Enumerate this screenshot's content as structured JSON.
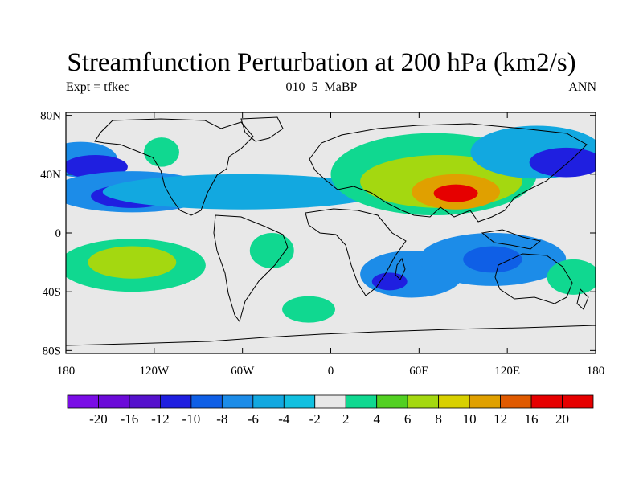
{
  "title": "Streamfunction Perturbation at 200 hPa (km2/s)",
  "left_string": "Expt = tfkec",
  "center_string": "010_5_MaBP",
  "right_string": "ANN",
  "axes": {
    "lat_labels": [
      "80N",
      "40N",
      "0",
      "40S",
      "80S"
    ],
    "lat_values": [
      80,
      40,
      0,
      -40,
      -80
    ],
    "lon_labels": [
      "180",
      "120W",
      "60W",
      "0",
      "60E",
      "120E",
      "180"
    ],
    "lon_values": [
      -180,
      -120,
      -60,
      0,
      60,
      120,
      180
    ]
  },
  "colorbar": {
    "labels": [
      "-20",
      "-16",
      "-12",
      "-10",
      "-8",
      "-6",
      "-4",
      "-2",
      "2",
      "4",
      "6",
      "8",
      "10",
      "12",
      "16",
      "20"
    ],
    "colors": [
      "#7a0de6",
      "#6b0ad8",
      "#5511cc",
      "#1f1fe0",
      "#0f5fe6",
      "#1c8ce8",
      "#12a8e0",
      "#12c0e0",
      "#e8e8e8",
      "#10d890",
      "#52d022",
      "#a4d810",
      "#d8d000",
      "#e0a000",
      "#e05a00",
      "#e60000"
    ]
  },
  "field_blobs": [
    {
      "lon": -170,
      "lat": 50,
      "rlon": 25,
      "rlat": 12,
      "level": -6
    },
    {
      "lon": -160,
      "lat": 45,
      "rlon": 22,
      "rlat": 8,
      "level": -12
    },
    {
      "lon": -135,
      "lat": 28,
      "rlon": 55,
      "rlat": 14,
      "level": -6
    },
    {
      "lon": -135,
      "lat": 25,
      "rlon": 28,
      "rlat": 8,
      "level": -12
    },
    {
      "lon": -60,
      "lat": 28,
      "rlon": 95,
      "rlat": 12,
      "level": -4
    },
    {
      "lon": -115,
      "lat": 55,
      "rlon": 12,
      "rlat": 10,
      "level": 4
    },
    {
      "lon": -135,
      "lat": -22,
      "rlon": 50,
      "rlat": 18,
      "level": 4
    },
    {
      "lon": -135,
      "lat": -20,
      "rlon": 30,
      "rlat": 11,
      "level": 8
    },
    {
      "lon": -40,
      "lat": -12,
      "rlon": 15,
      "rlat": 12,
      "level": 4
    },
    {
      "lon": -15,
      "lat": -52,
      "rlon": 18,
      "rlat": 9,
      "level": 4
    },
    {
      "lon": 70,
      "lat": 40,
      "rlon": 70,
      "rlat": 28,
      "level": 4
    },
    {
      "lon": 75,
      "lat": 35,
      "rlon": 55,
      "rlat": 18,
      "level": 8
    },
    {
      "lon": 85,
      "lat": 28,
      "rlon": 30,
      "rlat": 12,
      "level": 12
    },
    {
      "lon": 85,
      "lat": 27,
      "rlon": 15,
      "rlat": 6,
      "level": 20
    },
    {
      "lon": 140,
      "lat": 55,
      "rlon": 45,
      "rlat": 18,
      "level": -4
    },
    {
      "lon": 160,
      "lat": 48,
      "rlon": 25,
      "rlat": 10,
      "level": -10
    },
    {
      "lon": 55,
      "lat": -28,
      "rlon": 35,
      "rlat": 16,
      "level": -6
    },
    {
      "lon": 40,
      "lat": -33,
      "rlon": 12,
      "rlat": 6,
      "level": -10
    },
    {
      "lon": 110,
      "lat": -18,
      "rlon": 50,
      "rlat": 18,
      "level": -6
    },
    {
      "lon": 110,
      "lat": -18,
      "rlon": 20,
      "rlat": 9,
      "level": -8
    },
    {
      "lon": 165,
      "lat": -30,
      "rlon": 18,
      "rlat": 12,
      "level": 4
    }
  ]
}
